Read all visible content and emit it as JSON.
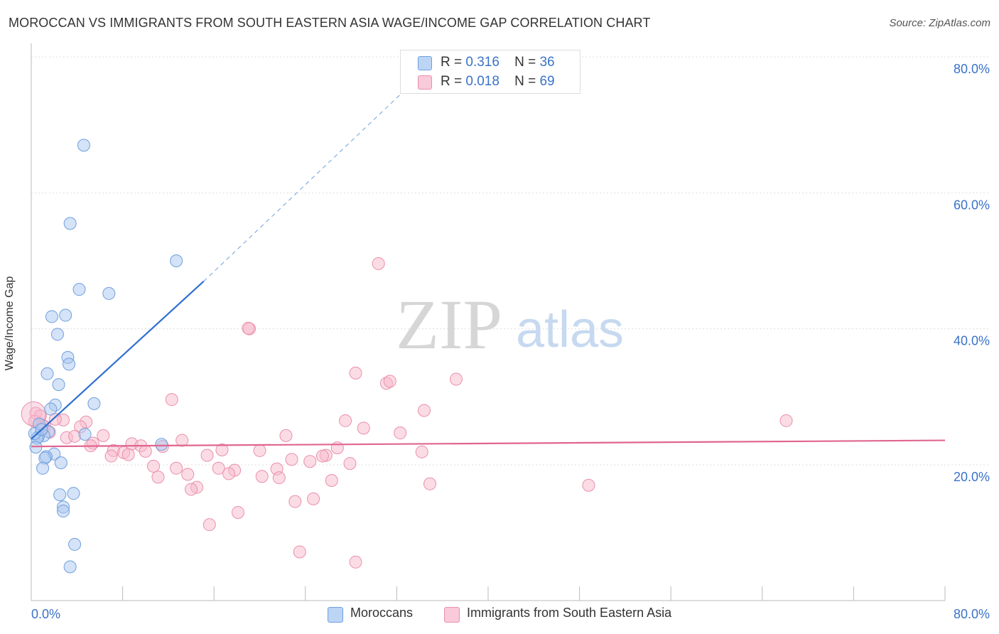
{
  "title": "MOROCCAN VS IMMIGRANTS FROM SOUTH EASTERN ASIA WAGE/INCOME GAP CORRELATION CHART",
  "source": "Source: ZipAtlas.com",
  "watermark": {
    "zip": "ZIP",
    "atlas": "atlas"
  },
  "legend_top": {
    "series1": {
      "r_label": "R =",
      "r_value": "0.316",
      "n_label": "N =",
      "n_value": "36"
    },
    "series2": {
      "r_label": "R =",
      "r_value": "0.018",
      "n_label": "N =",
      "n_value": "69"
    }
  },
  "legend_bottom": {
    "series1": "Moroccans",
    "series2": "Immigrants from South Eastern Asia"
  },
  "colors": {
    "blue_fill": "#a9c8f0",
    "blue_stroke": "#6f9fde",
    "blue_line": "#2f6fd0",
    "pink_fill": "#f7b9cc",
    "pink_stroke": "#ea8fac",
    "pink_line": "#e0668f",
    "tick_text": "#3a72c9",
    "grid": "#dddddd"
  },
  "chart_data": {
    "type": "scatter",
    "title": "MOROCCAN VS IMMIGRANTS FROM SOUTH EASTERN ASIA WAGE/INCOME GAP CORRELATION CHART",
    "xlabel": "",
    "ylabel": "Wage/Income Gap",
    "xlim": [
      0,
      80
    ],
    "ylim": [
      0,
      82
    ],
    "x_tick_labels": [
      "0.0%",
      "80.0%"
    ],
    "y_ticks": [
      20,
      40,
      60,
      80
    ],
    "y_tick_labels": [
      "20.0%",
      "40.0%",
      "60.0%",
      "80.0%"
    ],
    "series": [
      {
        "name": "Moroccans",
        "r": 0.316,
        "n": 36,
        "trend": {
          "x": [
            0,
            15.1
          ],
          "y": [
            23.8,
            47.0
          ],
          "extended_to": {
            "x": 32.9,
            "y": 75.4
          }
        },
        "points": [
          {
            "x": 4.6,
            "y": 67.0
          },
          {
            "x": 3.4,
            "y": 55.5
          },
          {
            "x": 12.7,
            "y": 50.0
          },
          {
            "x": 4.2,
            "y": 45.8
          },
          {
            "x": 6.8,
            "y": 45.2
          },
          {
            "x": 1.8,
            "y": 41.8
          },
          {
            "x": 3.0,
            "y": 42.0
          },
          {
            "x": 2.3,
            "y": 39.2
          },
          {
            "x": 3.2,
            "y": 35.8
          },
          {
            "x": 3.3,
            "y": 34.8
          },
          {
            "x": 1.4,
            "y": 33.4
          },
          {
            "x": 2.4,
            "y": 31.8
          },
          {
            "x": 5.5,
            "y": 29.0
          },
          {
            "x": 2.1,
            "y": 28.8
          },
          {
            "x": 1.7,
            "y": 28.2
          },
          {
            "x": 0.7,
            "y": 26.0
          },
          {
            "x": 1.5,
            "y": 24.9
          },
          {
            "x": 1.1,
            "y": 24.3
          },
          {
            "x": 0.6,
            "y": 24.1
          },
          {
            "x": 4.7,
            "y": 24.5
          },
          {
            "x": 0.5,
            "y": 23.9
          },
          {
            "x": 0.4,
            "y": 22.6
          },
          {
            "x": 11.4,
            "y": 23.0
          },
          {
            "x": 2.0,
            "y": 21.6
          },
          {
            "x": 1.3,
            "y": 21.2
          },
          {
            "x": 1.2,
            "y": 21.0
          },
          {
            "x": 2.6,
            "y": 20.3
          },
          {
            "x": 1.0,
            "y": 19.5
          },
          {
            "x": 2.5,
            "y": 15.6
          },
          {
            "x": 3.7,
            "y": 15.8
          },
          {
            "x": 2.8,
            "y": 13.8
          },
          {
            "x": 2.8,
            "y": 13.2
          },
          {
            "x": 3.8,
            "y": 8.3
          },
          {
            "x": 3.4,
            "y": 5.0
          },
          {
            "x": 0.3,
            "y": 24.6
          },
          {
            "x": 0.9,
            "y": 25.2
          }
        ]
      },
      {
        "name": "Immigrants from South Eastern Asia",
        "r": 0.018,
        "n": 69,
        "trend": {
          "x": [
            0,
            80
          ],
          "y": [
            22.7,
            23.6
          ]
        },
        "points": [
          {
            "x": 30.4,
            "y": 49.6
          },
          {
            "x": 19.1,
            "y": 40.0
          },
          {
            "x": 19.0,
            "y": 40.1
          },
          {
            "x": 28.4,
            "y": 33.5
          },
          {
            "x": 31.1,
            "y": 32.0
          },
          {
            "x": 31.4,
            "y": 32.3
          },
          {
            "x": 37.2,
            "y": 32.6
          },
          {
            "x": 12.3,
            "y": 29.6
          },
          {
            "x": 34.4,
            "y": 28.0
          },
          {
            "x": 4.8,
            "y": 26.3
          },
          {
            "x": 27.5,
            "y": 26.5
          },
          {
            "x": 66.1,
            "y": 26.5
          },
          {
            "x": 2.8,
            "y": 26.6
          },
          {
            "x": 1.2,
            "y": 25.6
          },
          {
            "x": 2.1,
            "y": 26.7
          },
          {
            "x": 29.1,
            "y": 25.4
          },
          {
            "x": 4.3,
            "y": 25.6
          },
          {
            "x": 32.3,
            "y": 24.7
          },
          {
            "x": 22.3,
            "y": 24.3
          },
          {
            "x": 6.3,
            "y": 24.3
          },
          {
            "x": 3.1,
            "y": 24.0
          },
          {
            "x": 3.8,
            "y": 24.2
          },
          {
            "x": 13.2,
            "y": 23.6
          },
          {
            "x": 5.4,
            "y": 23.2
          },
          {
            "x": 8.8,
            "y": 23.1
          },
          {
            "x": 9.6,
            "y": 22.8
          },
          {
            "x": 5.2,
            "y": 22.8
          },
          {
            "x": 11.5,
            "y": 22.7
          },
          {
            "x": 26.8,
            "y": 22.5
          },
          {
            "x": 16.7,
            "y": 22.2
          },
          {
            "x": 20.0,
            "y": 22.1
          },
          {
            "x": 7.2,
            "y": 22.1
          },
          {
            "x": 10.0,
            "y": 22.0
          },
          {
            "x": 34.2,
            "y": 21.9
          },
          {
            "x": 8.1,
            "y": 21.8
          },
          {
            "x": 8.5,
            "y": 21.5
          },
          {
            "x": 7.0,
            "y": 21.3
          },
          {
            "x": 15.4,
            "y": 21.4
          },
          {
            "x": 25.8,
            "y": 21.4
          },
          {
            "x": 25.5,
            "y": 21.3
          },
          {
            "x": 22.8,
            "y": 20.8
          },
          {
            "x": 24.4,
            "y": 20.5
          },
          {
            "x": 27.9,
            "y": 20.2
          },
          {
            "x": 10.7,
            "y": 19.8
          },
          {
            "x": 12.7,
            "y": 19.5
          },
          {
            "x": 16.4,
            "y": 19.5
          },
          {
            "x": 21.5,
            "y": 19.4
          },
          {
            "x": 17.8,
            "y": 19.2
          },
          {
            "x": 17.3,
            "y": 18.7
          },
          {
            "x": 13.7,
            "y": 18.6
          },
          {
            "x": 11.1,
            "y": 18.2
          },
          {
            "x": 20.2,
            "y": 18.3
          },
          {
            "x": 21.7,
            "y": 18.1
          },
          {
            "x": 26.3,
            "y": 17.7
          },
          {
            "x": 34.9,
            "y": 17.2
          },
          {
            "x": 48.8,
            "y": 17.0
          },
          {
            "x": 14.5,
            "y": 16.7
          },
          {
            "x": 14.0,
            "y": 16.4
          },
          {
            "x": 24.7,
            "y": 15.0
          },
          {
            "x": 23.1,
            "y": 14.6
          },
          {
            "x": 18.1,
            "y": 13.0
          },
          {
            "x": 15.6,
            "y": 11.2
          },
          {
            "x": 23.5,
            "y": 7.2
          },
          {
            "x": 28.4,
            "y": 5.7
          },
          {
            "x": 0.4,
            "y": 27.6
          },
          {
            "x": 0.8,
            "y": 27.2
          },
          {
            "x": 1.6,
            "y": 24.8
          },
          {
            "x": 0.3,
            "y": 26.4
          },
          {
            "x": 1.0,
            "y": 25.8
          }
        ]
      }
    ]
  }
}
